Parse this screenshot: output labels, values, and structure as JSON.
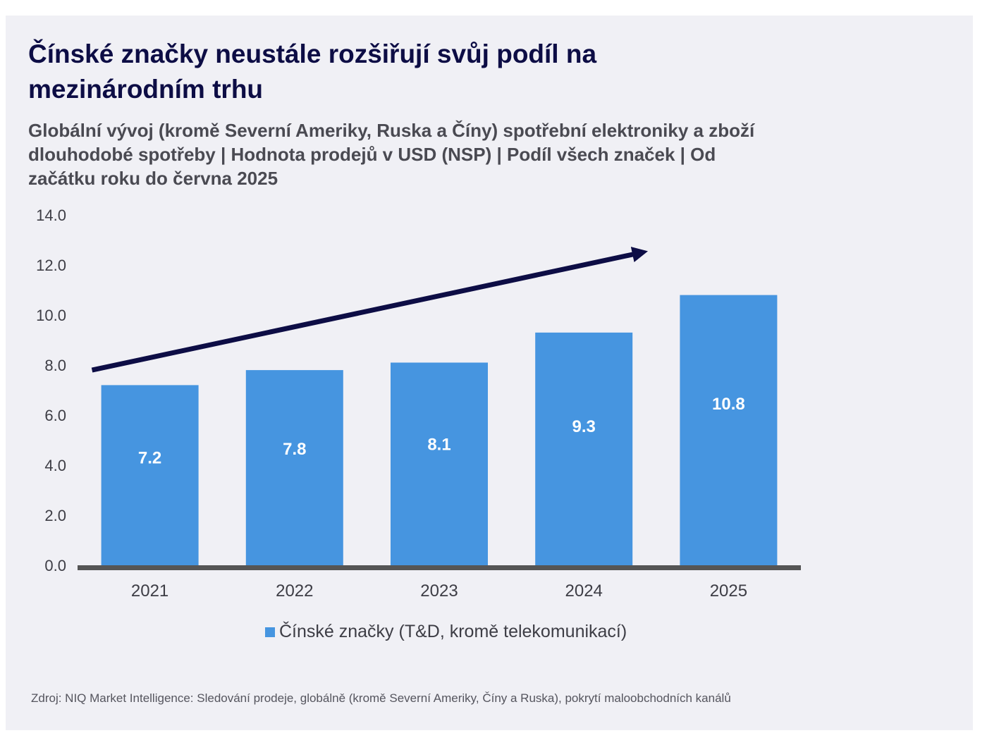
{
  "colors": {
    "panel_background": "#f0f0f5",
    "title": "#0d0d45",
    "bar": "#4695e0",
    "axis_baseline": "#555555",
    "trend_arrow": "#0d0d45",
    "data_label": "#ffffff"
  },
  "chart_data": {
    "type": "bar",
    "title": "Čínské značky neustále rozšiřují svůj podíl na mezinárodním trhu",
    "subtitle": "Globální vývoj (kromě Severní Ameriky, Ruska a Číny) spotřební elektroniky a zboží dlouhodobé spotřeby | Hodnota prodejů v USD (NSP) | Podíl všech značek | Od začátku roku do června 2025",
    "categories": [
      "2021",
      "2022",
      "2023",
      "2024",
      "2025"
    ],
    "series": [
      {
        "name": "Čínské značky (T&D, kromě telekomunikací)",
        "values": [
          7.2,
          7.8,
          8.1,
          9.3,
          10.8
        ],
        "data_labels": [
          "7.2",
          "7.8",
          "8.1",
          "9.3",
          "10.8"
        ]
      }
    ],
    "xlabel": "",
    "ylabel": "",
    "ylim": [
      0,
      14
    ],
    "yticks": [
      0,
      2,
      4,
      6,
      8,
      10,
      12,
      14
    ],
    "ytick_labels": [
      "0.0",
      "2.0",
      "4.0",
      "6.0",
      "8.0",
      "10.0",
      "12.0",
      "14.0"
    ],
    "grid": false,
    "legend_position": "bottom-center",
    "annotations": [
      {
        "type": "trend-arrow",
        "description": "upward trend arrow",
        "from": {
          "category_index": -0.4,
          "value": 7.8
        },
        "to": {
          "category_index": 3.4,
          "value": 12.5
        }
      }
    ]
  },
  "legend": {
    "label": "Čínské značky (T&D, kromě telekomunikací)"
  },
  "source": "Zdroj: NIQ Market Intelligence: Sledování prodeje, globálně (kromě Severní Ameriky, Číny a Ruska), pokrytí maloobchodních kanálů"
}
